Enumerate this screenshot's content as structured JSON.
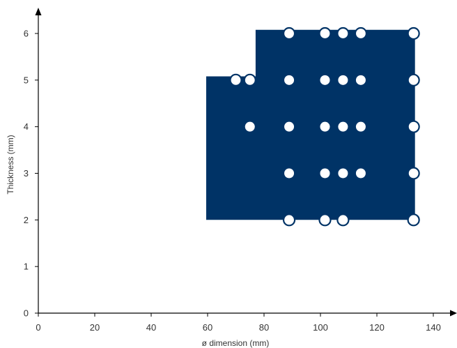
{
  "chart_data": {
    "type": "scatter",
    "title": "",
    "xlabel": "ø dimension (mm)",
    "ylabel": "Thickness (mm)",
    "xlim": [
      0,
      140
    ],
    "ylim": [
      0,
      6
    ],
    "xticks": [
      0,
      20,
      40,
      60,
      80,
      100,
      120,
      140
    ],
    "yticks": [
      0,
      1,
      2,
      3,
      4,
      5,
      6
    ],
    "grid": false,
    "colors": {
      "region": "#003366",
      "point_fill": "#ffffff",
      "point_stroke": "#003366",
      "axis": "#000000"
    },
    "region": [
      [
        59.5,
        2
      ],
      [
        59.5,
        5.08
      ],
      [
        77,
        5.08
      ],
      [
        77,
        6.08
      ],
      [
        133.5,
        6.08
      ],
      [
        133.5,
        2
      ]
    ],
    "points": [
      {
        "x": 88.9,
        "y": 6,
        "style": "ring"
      },
      {
        "x": 101.6,
        "y": 6,
        "style": "ring"
      },
      {
        "x": 108,
        "y": 6,
        "style": "ring"
      },
      {
        "x": 114.3,
        "y": 6,
        "style": "ring"
      },
      {
        "x": 133,
        "y": 6,
        "style": "ring"
      },
      {
        "x": 70,
        "y": 5,
        "style": "ring"
      },
      {
        "x": 75,
        "y": 5,
        "style": "ring"
      },
      {
        "x": 88.9,
        "y": 5,
        "style": "dot"
      },
      {
        "x": 101.6,
        "y": 5,
        "style": "dot"
      },
      {
        "x": 108,
        "y": 5,
        "style": "dot"
      },
      {
        "x": 114.3,
        "y": 5,
        "style": "dot"
      },
      {
        "x": 133,
        "y": 5,
        "style": "ring"
      },
      {
        "x": 75,
        "y": 4,
        "style": "dot"
      },
      {
        "x": 88.9,
        "y": 4,
        "style": "dot"
      },
      {
        "x": 101.6,
        "y": 4,
        "style": "dot"
      },
      {
        "x": 108,
        "y": 4,
        "style": "dot"
      },
      {
        "x": 114.3,
        "y": 4,
        "style": "dot"
      },
      {
        "x": 133,
        "y": 4,
        "style": "ring"
      },
      {
        "x": 88.9,
        "y": 3,
        "style": "dot"
      },
      {
        "x": 101.6,
        "y": 3,
        "style": "dot"
      },
      {
        "x": 108,
        "y": 3,
        "style": "dot"
      },
      {
        "x": 114.3,
        "y": 3,
        "style": "dot"
      },
      {
        "x": 133,
        "y": 3,
        "style": "ring"
      },
      {
        "x": 88.9,
        "y": 2,
        "style": "ring"
      },
      {
        "x": 101.6,
        "y": 2,
        "style": "ring"
      },
      {
        "x": 108,
        "y": 2,
        "style": "ring"
      },
      {
        "x": 133,
        "y": 2,
        "style": "ring"
      }
    ]
  }
}
